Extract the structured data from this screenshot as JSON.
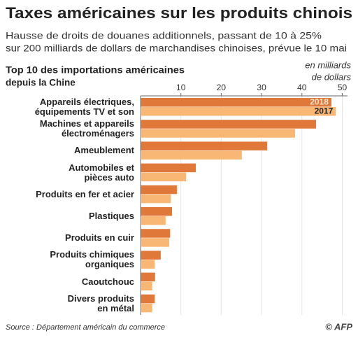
{
  "chart_data": {
    "type": "hbar",
    "title": "Taxes américaines sur les produits chinois",
    "subtitle": [
      "Hausse de droits de douanes additionnels, passant de 10 à 25%",
      "sur 200 milliards de dollars de marchandises chinoises, prévue le 10 mai"
    ],
    "heading": [
      "Top 10 des importations américaines",
      "depuis la Chine"
    ],
    "unit": [
      "en milliards",
      "de dollars"
    ],
    "source": "Source : Département américain du commerce",
    "credit": "© AFP",
    "categories": [
      "Appareils électriques,\néquipements TV et son",
      "Machines et appareils\nélectroménagers",
      "Ameublement",
      "Automobiles et\npièces auto",
      "Produits en fer et acier",
      "Plastiques",
      "Produits en cuir",
      "Produits chimiques\norganiques",
      "Caoutchouc",
      "Divers produits\nen métal"
    ],
    "series": [
      {
        "name": "2018",
        "color": "#e0783a",
        "values": [
          47.3,
          43.5,
          31.4,
          13.7,
          9.0,
          7.8,
          7.3,
          5.0,
          3.6,
          3.5
        ]
      },
      {
        "name": "2017",
        "color": "#f8b775",
        "values": [
          48.4,
          38.3,
          25.1,
          11.3,
          7.5,
          6.2,
          7.1,
          3.5,
          2.9,
          2.9
        ]
      }
    ],
    "xlim": [
      0,
      51.3
    ],
    "xticks": [
      10,
      20,
      30,
      40,
      50
    ],
    "grid": true
  }
}
